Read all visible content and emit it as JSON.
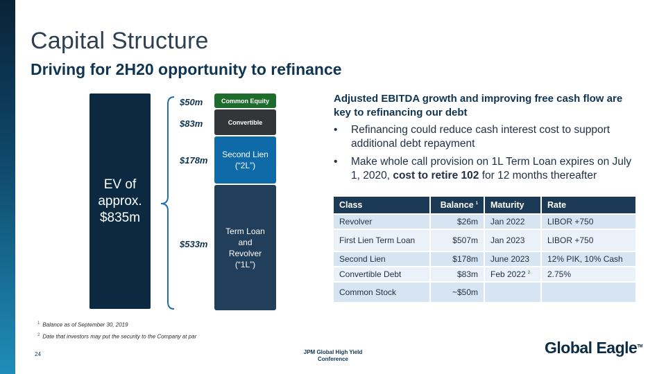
{
  "slide": {
    "title": "Capital Structure",
    "subtitle": "Driving for 2H20 opportunity to refinance",
    "page_number": "24",
    "conference": [
      "JPM Global High Yield",
      "Conference"
    ],
    "logo": "Global Eagle",
    "logo_tm": "TM"
  },
  "ev": {
    "lines": [
      "EV of",
      "approx.",
      "$835m"
    ]
  },
  "stack": {
    "amounts": [
      "$50m",
      "$83m",
      "$178m",
      "$533m"
    ],
    "common_equity": "Common Equity",
    "convertible": "Convertible",
    "second_lien": [
      "Second Lien",
      "(“2L”)"
    ],
    "term_loan": [
      "Term Loan",
      "and",
      "Revolver",
      "(“1L”)"
    ]
  },
  "commentary": {
    "heading": "Adjusted EBITDA growth and improving free cash flow are key to refinancing our debt",
    "bullet_char": "•",
    "bullet1": "Refinancing could reduce cash interest cost to support additional debt repayment",
    "bullet2_pre": "Make whole call provision on 1L Term Loan expires on July 1, 2020, ",
    "bullet2_bold": "cost to retire 102",
    "bullet2_post": " for 12 months thereafter"
  },
  "table": {
    "headers": {
      "class": "Class",
      "balance": "Balance",
      "balance_note": "1",
      "maturity": "Maturity",
      "rate": "Rate"
    },
    "rows": [
      {
        "class": "Revolver",
        "balance": "$26m",
        "maturity": "Jan 2022",
        "maturity_note": "",
        "rate": "LIBOR +750"
      },
      {
        "class": "First Lien Term Loan",
        "balance": "$507m",
        "maturity": "Jan 2023",
        "maturity_note": "",
        "rate": "LIBOR +750"
      },
      {
        "class": "Second Lien",
        "balance": "$178m",
        "maturity": "June 2023",
        "maturity_note": "",
        "rate": "12% PIK, 10% Cash"
      },
      {
        "class": "Convertible Debt",
        "balance": "$83m",
        "maturity": "Feb 2022",
        "maturity_note": "2",
        "rate": "2.75%"
      },
      {
        "class": "Common Stock",
        "balance": "~$50m",
        "maturity": "",
        "maturity_note": "",
        "rate": ""
      }
    ]
  },
  "footnotes": [
    {
      "num": "1",
      "text": "Balance as of September 30, 2019"
    },
    {
      "num": "2",
      "text": "Date that investors may put the security to the Company at par"
    }
  ],
  "colors": {
    "navy": "#0b2a42",
    "equity_green": "#1e6b2e",
    "convertible_gray": "#333638",
    "second_lien_blue": "#0e6ba8",
    "term_loan_navy": "#213e5a",
    "table_header": "#1c3a56"
  }
}
